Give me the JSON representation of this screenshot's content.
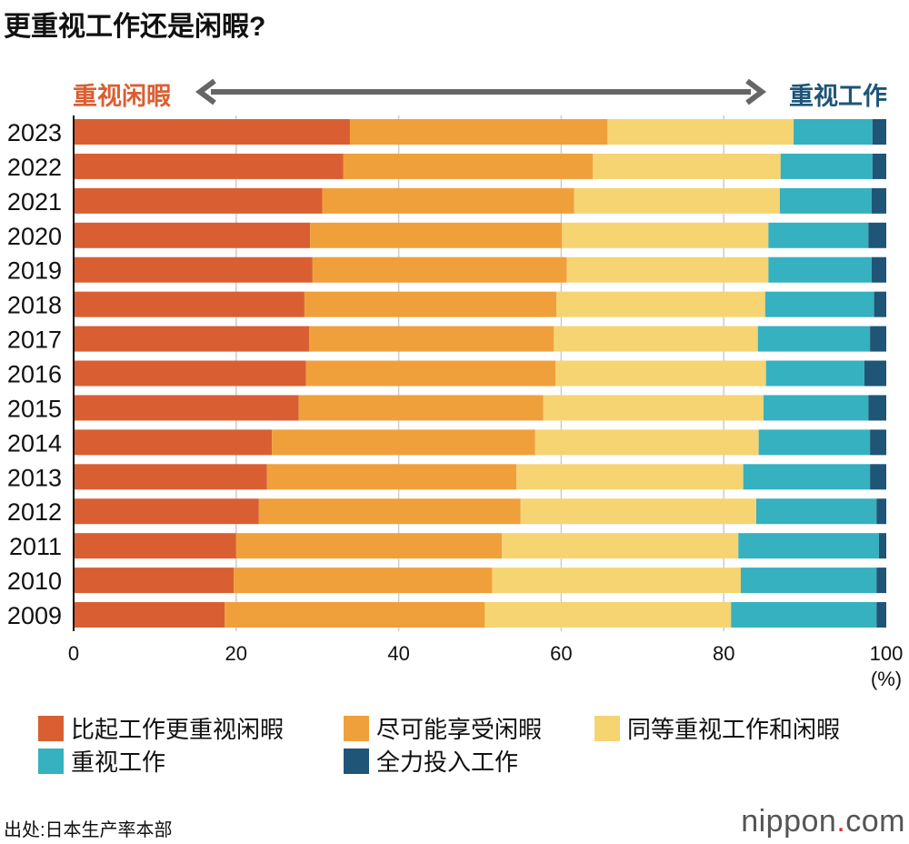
{
  "title": "更重视工作还是闲暇?",
  "arrow_labels": {
    "left": "重视闲暇",
    "right": "重视工作"
  },
  "source": "出处:日本生产率本部",
  "logo": "nippon.com",
  "chart_data": {
    "type": "bar",
    "orientation": "horizontal",
    "stacked": true,
    "categories": [
      "2023",
      "2022",
      "2021",
      "2020",
      "2019",
      "2018",
      "2017",
      "2016",
      "2015",
      "2014",
      "2013",
      "2012",
      "2011",
      "2010",
      "2009"
    ],
    "series": [
      {
        "name": "比起工作更重视闲暇",
        "color": "#d95f33",
        "values": [
          34.0,
          33.2,
          30.6,
          29.1,
          29.4,
          28.4,
          29.0,
          28.6,
          27.7,
          24.4,
          23.8,
          22.8,
          20.0,
          19.7,
          18.6
        ]
      },
      {
        "name": "尽可能享受闲暇",
        "color": "#f0a03a",
        "values": [
          31.7,
          30.7,
          31.0,
          31.0,
          31.3,
          31.0,
          30.1,
          30.7,
          30.1,
          32.4,
          30.7,
          32.2,
          32.7,
          31.8,
          32.0
        ]
      },
      {
        "name": "同等重视工作和闲暇",
        "color": "#f6d472",
        "values": [
          22.9,
          23.1,
          25.3,
          25.4,
          24.8,
          25.7,
          25.1,
          25.9,
          27.1,
          27.5,
          27.9,
          29.0,
          29.1,
          30.6,
          30.3
        ]
      },
      {
        "name": "重视工作",
        "color": "#35b1c0",
        "values": [
          9.7,
          11.3,
          11.3,
          12.3,
          12.7,
          13.4,
          13.8,
          12.1,
          12.9,
          13.7,
          15.6,
          14.8,
          17.3,
          16.7,
          17.9
        ]
      },
      {
        "name": "全力投入工作",
        "color": "#1f5577",
        "values": [
          1.7,
          1.7,
          1.8,
          2.2,
          1.8,
          1.5,
          2.0,
          2.7,
          2.2,
          2.0,
          2.0,
          1.2,
          0.9,
          1.2,
          1.2
        ]
      }
    ],
    "xlim": [
      0,
      100
    ],
    "xticks": [
      "0",
      "20",
      "40",
      "60",
      "80",
      "100"
    ],
    "xunit": "(%)",
    "grid": true,
    "legend_position": "bottom"
  }
}
